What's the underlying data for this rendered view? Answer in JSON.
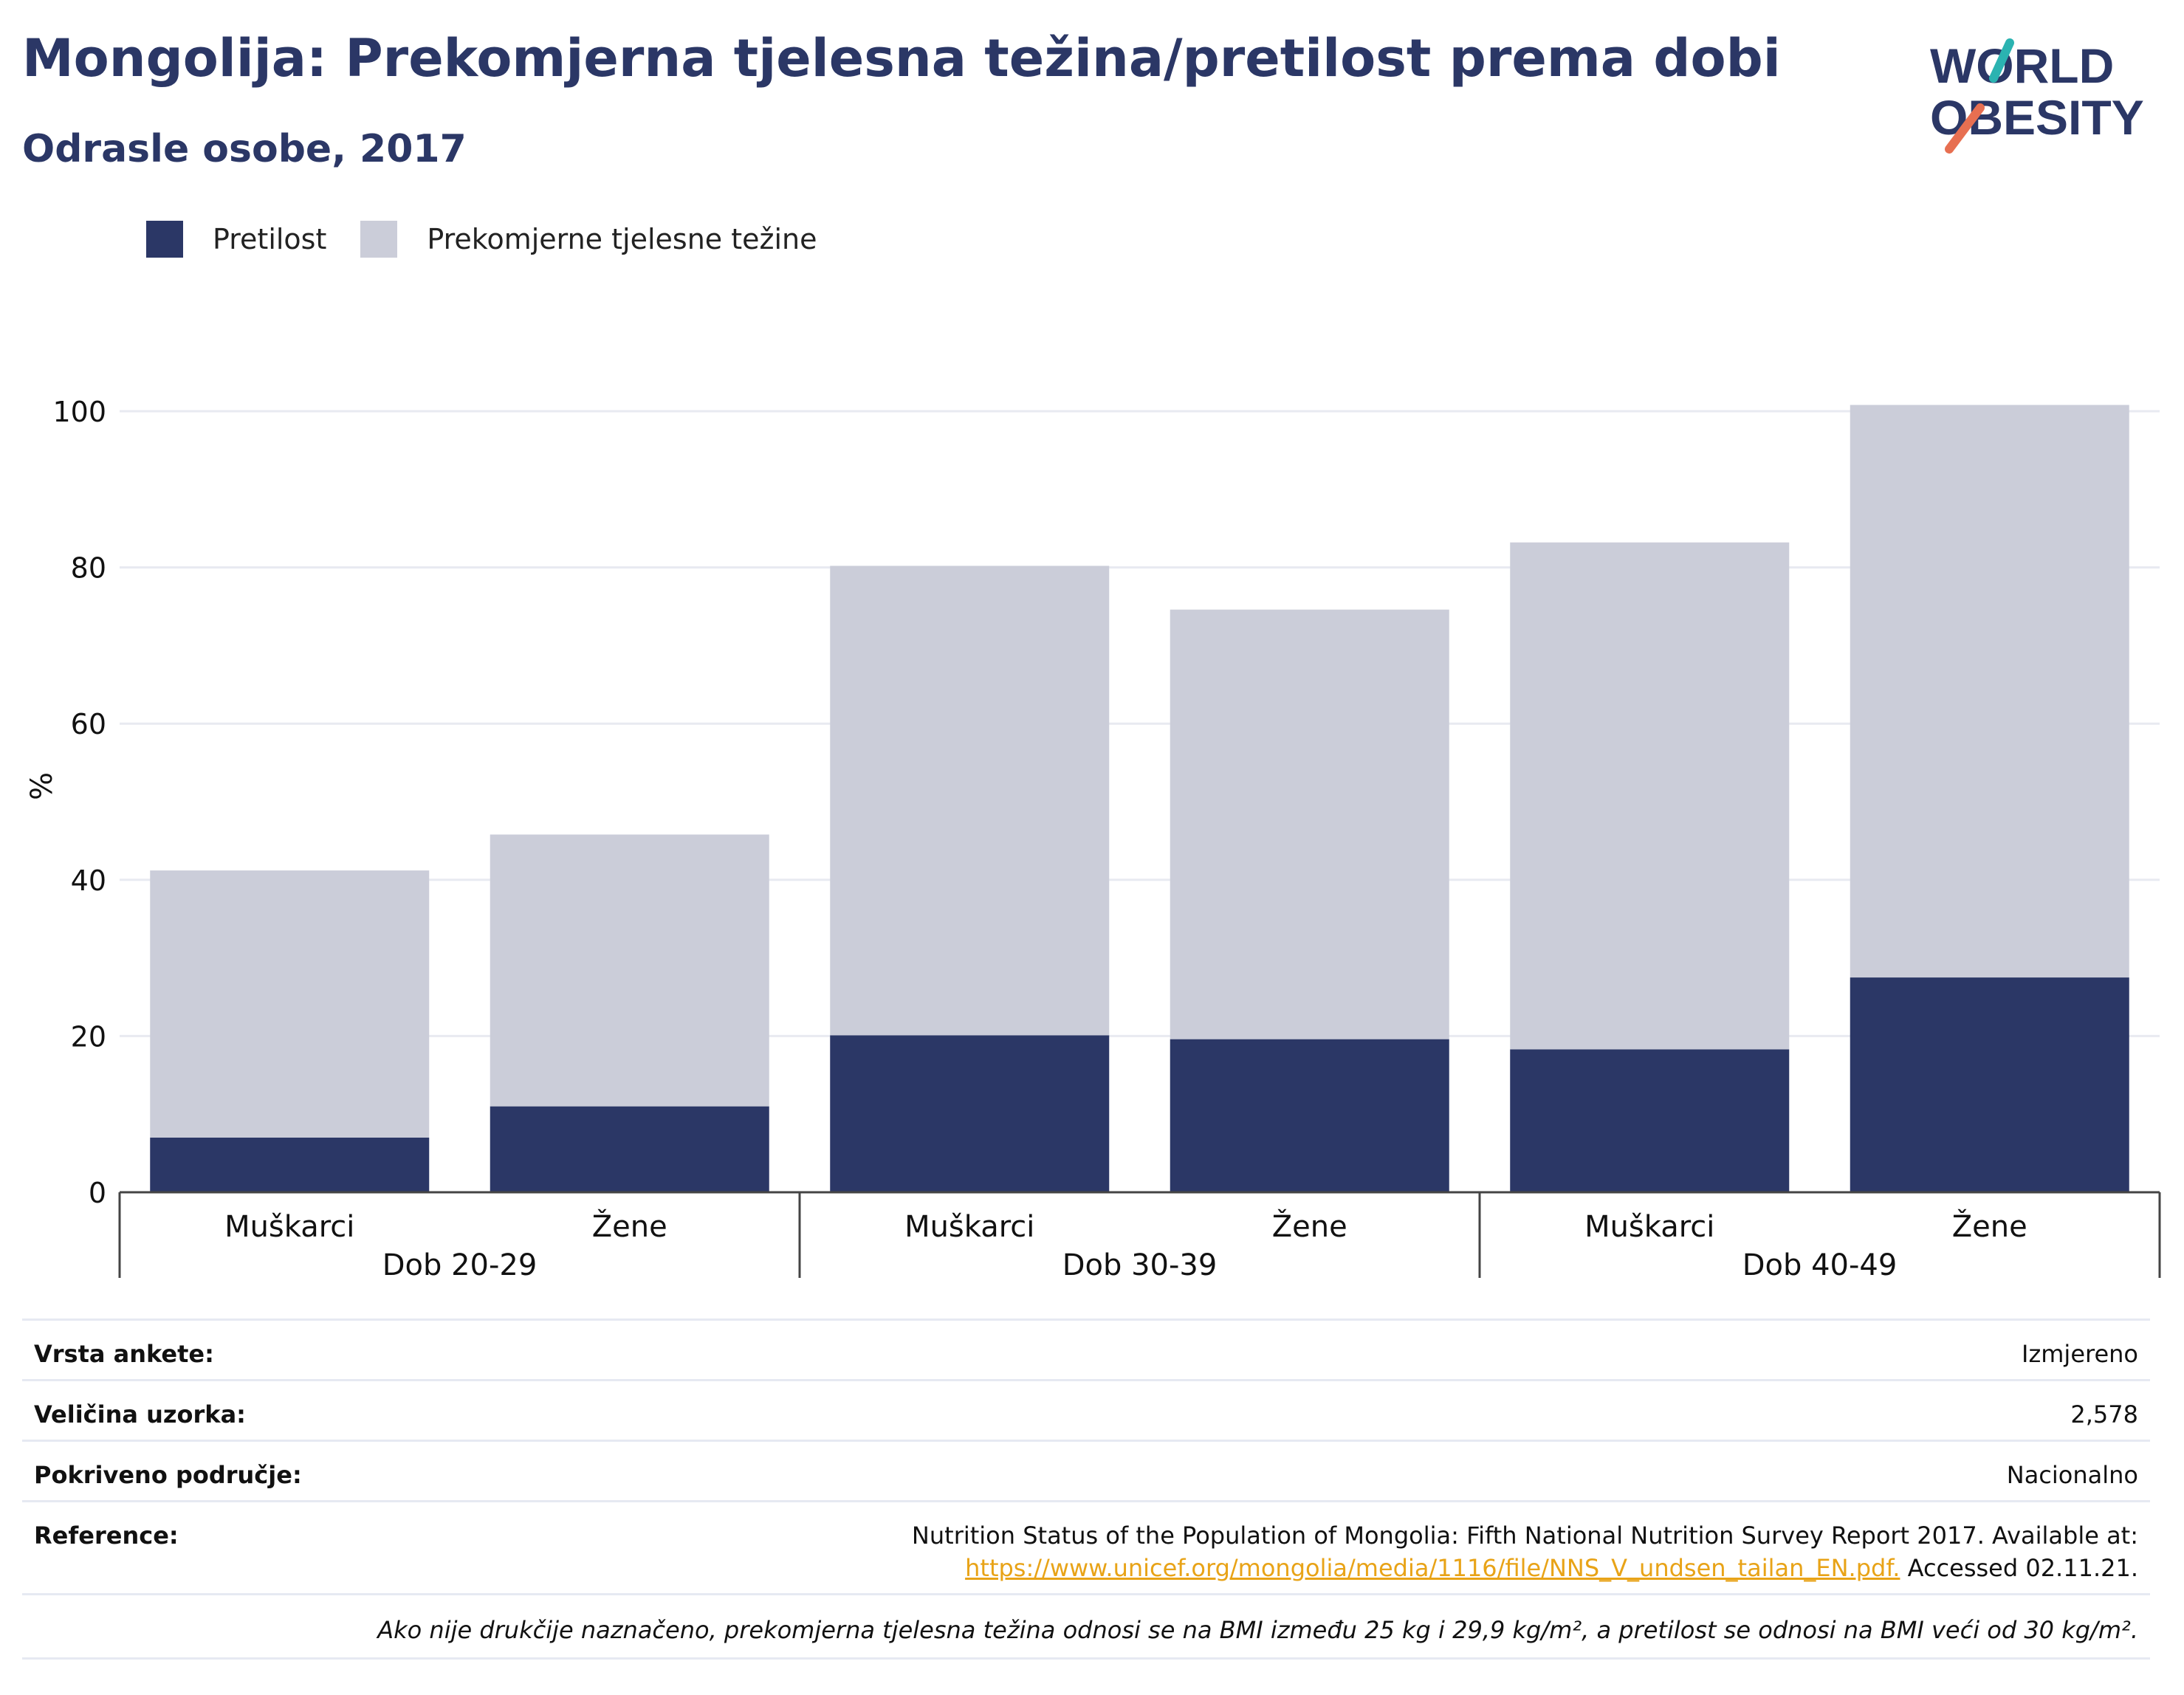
{
  "header": {
    "title": "Mongolija: Prekomjerna tjelesna težina/pretilost prema dobi",
    "subtitle": "Odrasle osobe, 2017"
  },
  "logo": {
    "line1": "WORLD",
    "line2": "OBESITY"
  },
  "legend": [
    {
      "label": "Pretilost",
      "color": "#2b3766"
    },
    {
      "label": "Prekomjerne tjelesne težine",
      "color": "#cbcdd9"
    }
  ],
  "chart_data": {
    "type": "bar",
    "stacked": true,
    "ylabel": "%",
    "ylim": [
      0,
      104
    ],
    "yticks": [
      0,
      20,
      40,
      60,
      80,
      100
    ],
    "grid": true,
    "legend_position": "top-left",
    "categories": [
      "Muškarci",
      "Žene",
      "Muškarci",
      "Žene",
      "Muškarci",
      "Žene"
    ],
    "groups": [
      {
        "label": "Dob 20-29",
        "span": [
          0,
          1
        ]
      },
      {
        "label": "Dob 30-39",
        "span": [
          2,
          3
        ]
      },
      {
        "label": "Dob 40-49",
        "span": [
          4,
          5
        ]
      }
    ],
    "series": [
      {
        "name": "Pretilost",
        "color": "#2b3766",
        "values": [
          7.0,
          11.0,
          20.1,
          19.6,
          18.3,
          27.5
        ]
      },
      {
        "name": "Prekomjerne tjelesne težine",
        "color": "#cbcdd9",
        "values": [
          34.2,
          34.8,
          60.1,
          55.0,
          64.9,
          73.3
        ]
      }
    ]
  },
  "meta": {
    "survey_type": {
      "label": "Vrsta ankete:",
      "value": "Izmjereno"
    },
    "sample_size": {
      "label": "Veličina uzorka:",
      "value": "2,578"
    },
    "coverage": {
      "label": "Pokriveno područje:",
      "value": "Nacionalno"
    },
    "reference": {
      "label": "Reference:",
      "line1": "Nutrition Status of the Population of Mongolia: Fifth National Nutrition Survey Report 2017. Available at:",
      "link": "https://www.unicef.org/mongolia/media/1116/file/NNS_V_undsen_tailan_EN.pdf.",
      "after_link": " Accessed 02.11.21."
    },
    "footnote": "Ako nije drukčije naznačeno, prekomjerna tjelesna težina odnosi se na BMI između 25 kg i 29,9 kg/m², a pretilost se odnosi na BMI veći od 30 kg/m²."
  }
}
